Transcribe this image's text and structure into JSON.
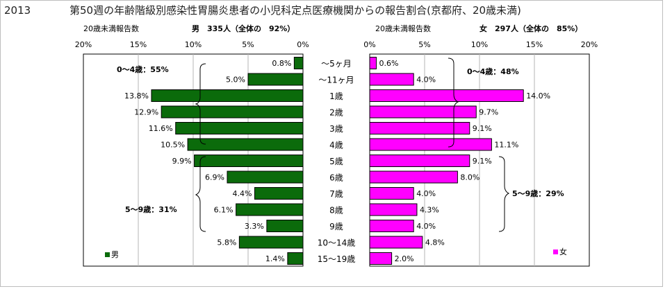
{
  "year": "2013",
  "title": "第50週の年齢階級別感染性胃腸炎患者の小児科定点医療機関からの報告割合(京都府、20歳未満)",
  "colors": {
    "male": "#0b6b0b",
    "female": "#ff00ff",
    "bg": "#ffffff",
    "plot_border": "#000000"
  },
  "chart_data": [
    {
      "type": "bar",
      "orientation": "horizontal",
      "direction": "right-to-left",
      "header_left": "20歳未満報告数",
      "header_right": "男　335人（全体の　92%）",
      "legend": "男",
      "legend_position": "bottom-left",
      "x_ticks": [
        "20%",
        "15%",
        "10%",
        "5%",
        "0%"
      ],
      "xlim": [
        0,
        20
      ],
      "grid": true,
      "series": [
        {
          "name": "男",
          "values": [
            0.8,
            5.0,
            13.8,
            12.9,
            11.6,
            10.5,
            9.9,
            6.9,
            4.4,
            6.1,
            3.3,
            5.8,
            1.4
          ]
        }
      ],
      "value_labels": [
        "0.8%",
        "5.0%",
        "13.8%",
        "12.9%",
        "11.6%",
        "10.5%",
        "9.9%",
        "6.9%",
        "4.4%",
        "6.1%",
        "3.3%",
        "5.8%",
        "1.4%"
      ],
      "annotations": [
        "0～4歳：55%",
        "5～9歳：31%"
      ]
    },
    {
      "type": "bar",
      "orientation": "horizontal",
      "direction": "left-to-right",
      "header_left": "20歳未満報告数",
      "header_right": "女　297人（全体の　85%）",
      "legend": "女",
      "legend_position": "bottom-right",
      "x_ticks": [
        "0%",
        "5%",
        "10%",
        "15%",
        "20%"
      ],
      "xlim": [
        0,
        20
      ],
      "grid": true,
      "series": [
        {
          "name": "女",
          "values": [
            0.6,
            4.0,
            14.0,
            9.7,
            9.1,
            11.1,
            9.1,
            8.0,
            4.0,
            4.3,
            4.0,
            4.8,
            2.0
          ]
        }
      ],
      "value_labels": [
        "0.6%",
        "4.0%",
        "14.0%",
        "9.7%",
        "9.1%",
        "11.1%",
        "9.1%",
        "8.0%",
        "4.0%",
        "4.3%",
        "4.0%",
        "4.8%",
        "2.0%"
      ],
      "annotations": [
        "0～4歳：48%",
        "5～9歳：29%"
      ]
    }
  ],
  "categories": [
    "～5ヶ月",
    "～11ヶ月",
    "1歳",
    "2歳",
    "3歳",
    "4歳",
    "5歳",
    "6歳",
    "7歳",
    "8歳",
    "9歳",
    "10～14歳",
    "15～19歳"
  ]
}
